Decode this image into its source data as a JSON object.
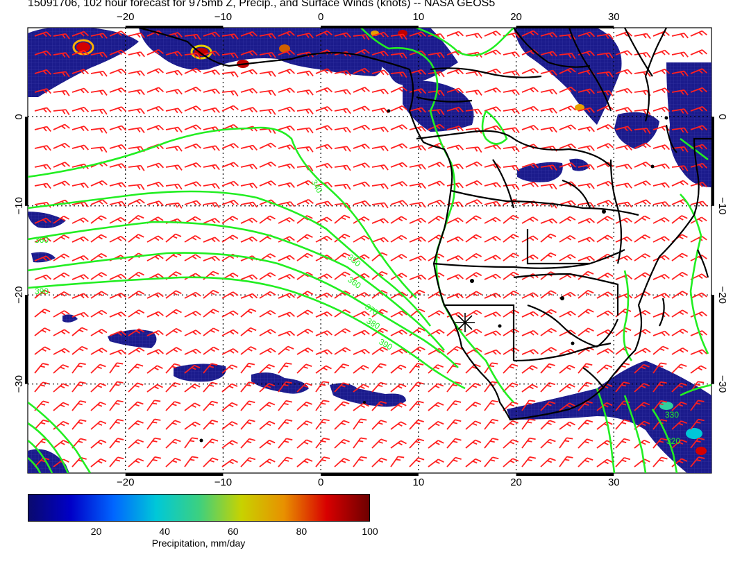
{
  "title": "15091706, 102 hour forecast for 975mb Z, Precip., and Surface Winds (knots) -- NASA GEOS5",
  "map": {
    "lon_range": [
      -30,
      40
    ],
    "lat_range": [
      -40,
      10
    ],
    "lon_ticks": [
      -20,
      -10,
      0,
      10,
      20,
      30
    ],
    "lat_ticks": [
      0,
      -10,
      -20,
      -30
    ],
    "lon_labels": [
      "−20",
      "−10",
      "0",
      "10",
      "20",
      "30"
    ],
    "lat_labels": [
      "0",
      "−10",
      "−20",
      "−30"
    ],
    "marker": {
      "lon": 15,
      "lat": -23,
      "symbol": "star"
    },
    "colors": {
      "contour": "#22ee22",
      "wind_barb": "#ff2020",
      "coast": "#000000",
      "grid": "#000000"
    },
    "contour_labels": [
      "340",
      "350",
      "360",
      "370",
      "380",
      "390",
      "320",
      "330"
    ]
  },
  "colorbar": {
    "ticks": [
      "20",
      "40",
      "60",
      "80",
      "100"
    ],
    "title": "Precipitation, mm/day",
    "colormap": [
      "#0a0a6e",
      "#0000c8",
      "#0066ff",
      "#00c8d8",
      "#3cd080",
      "#c8d200",
      "#e89000",
      "#d80000",
      "#6e0000"
    ]
  }
}
